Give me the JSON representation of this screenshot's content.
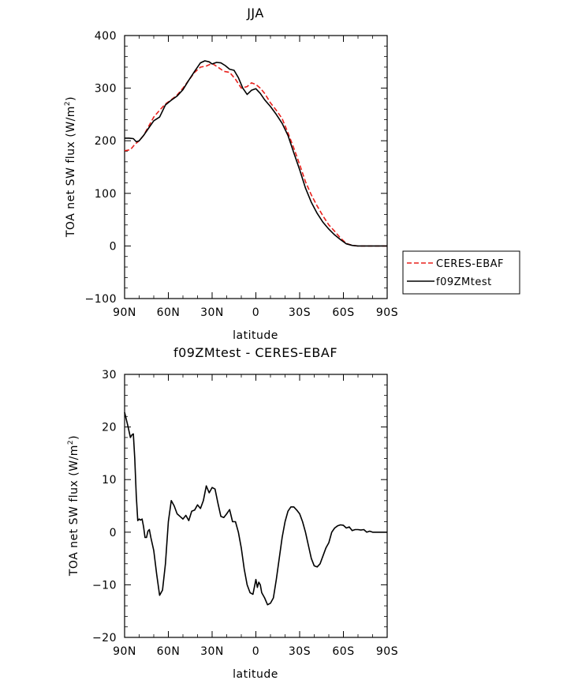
{
  "chart_data": [
    {
      "type": "line",
      "title": "JJA",
      "xlabel": "latitude",
      "ylabel": "TOA net SW flux (W/m",
      "ylabel_sup": "2",
      "ylabel_end": ")",
      "xlim": [
        90,
        -90
      ],
      "ylim": [
        -100,
        400
      ],
      "xticks": [
        90,
        60,
        30,
        0,
        -30,
        -60,
        -90
      ],
      "xtick_labels": [
        "90N",
        "60N",
        "30N",
        "0",
        "30S",
        "60S",
        "90S"
      ],
      "yticks": [
        -100,
        0,
        100,
        200,
        300,
        400
      ],
      "ytick_labels": [
        "−100",
        "0",
        "100",
        "200",
        "300",
        "400"
      ],
      "legend_position": "right",
      "series": [
        {
          "name": "CERES-EBAF",
          "color": "#e8201c",
          "dash": "dashed",
          "x": [
            90,
            86,
            83,
            80,
            77,
            74,
            70,
            66,
            62,
            58,
            54,
            50,
            46,
            42,
            38,
            34,
            30,
            26,
            22,
            18,
            14,
            10,
            6,
            3,
            0,
            -3,
            -6,
            -10,
            -14,
            -18,
            -22,
            -26,
            -30,
            -34,
            -38,
            -42,
            -46,
            -50,
            -54,
            -58,
            -62,
            -66,
            -70,
            -75,
            -80,
            -85,
            -90
          ],
          "y": [
            181,
            183,
            193,
            200,
            210,
            225,
            245,
            258,
            270,
            278,
            287,
            300,
            315,
            330,
            340,
            342,
            347,
            340,
            332,
            330,
            317,
            300,
            303,
            310,
            307,
            300,
            290,
            272,
            258,
            242,
            215,
            186,
            155,
            122,
            97,
            76,
            57,
            40,
            28,
            15,
            5,
            1,
            0,
            0,
            0,
            0,
            0
          ]
        },
        {
          "name": "f09ZMtest",
          "color": "#000000",
          "dash": "solid",
          "x": [
            90,
            87,
            84,
            82,
            80,
            77,
            74,
            70,
            66,
            62,
            58,
            54,
            50,
            46,
            42,
            38,
            35,
            32,
            30,
            27,
            24,
            21,
            18,
            15,
            12,
            9,
            6,
            3,
            0,
            -3,
            -6,
            -10,
            -14,
            -18,
            -22,
            -26,
            -30,
            -34,
            -38,
            -42,
            -46,
            -50,
            -54,
            -58,
            -62,
            -66,
            -70,
            -75,
            -80,
            -85,
            -90
          ],
          "y": [
            205,
            205,
            204,
            198,
            200,
            210,
            222,
            238,
            245,
            268,
            277,
            285,
            297,
            315,
            332,
            348,
            352,
            350,
            346,
            349,
            348,
            343,
            336,
            334,
            320,
            300,
            288,
            296,
            299,
            290,
            278,
            265,
            250,
            233,
            210,
            177,
            145,
            110,
            83,
            62,
            45,
            32,
            21,
            12,
            4,
            1,
            0,
            0,
            0,
            0,
            0
          ]
        }
      ]
    },
    {
      "type": "line",
      "title": "f09ZMtest - CERES-EBAF",
      "xlabel": "latitude",
      "ylabel": "TOA net SW flux (W/m",
      "ylabel_sup": "2",
      "ylabel_end": ")",
      "xlim": [
        90,
        -90
      ],
      "ylim": [
        -20,
        30
      ],
      "xticks": [
        90,
        60,
        30,
        0,
        -30,
        -60,
        -90
      ],
      "xtick_labels": [
        "90N",
        "60N",
        "30N",
        "0",
        "30S",
        "60S",
        "90S"
      ],
      "yticks": [
        -20,
        -10,
        0,
        10,
        20,
        30
      ],
      "ytick_labels": [
        "−20",
        "−10",
        "0",
        "10",
        "20",
        "30"
      ],
      "series": [
        {
          "name": "f09ZMtest",
          "color": "#000000",
          "dash": "solid",
          "x": [
            90,
            88,
            86,
            85,
            84,
            83,
            82,
            81,
            80,
            79,
            78,
            77,
            76,
            75,
            74,
            73,
            72,
            70,
            68,
            66,
            64,
            62,
            60,
            58,
            56,
            54,
            52,
            50,
            48,
            46,
            44,
            42,
            40,
            38,
            36,
            34,
            32,
            30,
            28,
            26,
            24,
            22,
            20,
            18,
            16,
            14,
            12,
            10,
            8,
            6,
            4,
            2,
            0,
            -1,
            -2,
            -3,
            -4,
            -6,
            -8,
            -10,
            -12,
            -14,
            -16,
            -18,
            -20,
            -22,
            -24,
            -26,
            -28,
            -30,
            -32,
            -34,
            -36,
            -38,
            -40,
            -42,
            -44,
            -46,
            -48,
            -50,
            -52,
            -54,
            -56,
            -58,
            -60,
            -62,
            -64,
            -66,
            -68,
            -70,
            -72,
            -74,
            -76,
            -78,
            -80,
            -85,
            -90
          ],
          "y": [
            22.8,
            20.5,
            18,
            18.5,
            18.7,
            14,
            7,
            2.2,
            2.5,
            2.3,
            2.5,
            1,
            -1,
            -1,
            0.2,
            0.5,
            -1,
            -3.5,
            -8,
            -12,
            -11,
            -6,
            2,
            6,
            5,
            3.5,
            3,
            2.5,
            3.2,
            2.2,
            4,
            4.2,
            5.2,
            4.5,
            6,
            8.8,
            7.5,
            8.5,
            8.2,
            5.5,
            3,
            2.8,
            3.5,
            4.3,
            2,
            2,
            0,
            -3,
            -7,
            -10,
            -11.5,
            -11.8,
            -9,
            -10.5,
            -9.5,
            -10,
            -11.5,
            -12.5,
            -13.8,
            -13.5,
            -12.5,
            -9,
            -5,
            -1,
            2,
            4,
            4.8,
            4.8,
            4.2,
            3.5,
            2,
            0,
            -2.5,
            -5,
            -6.4,
            -6.6,
            -6,
            -4.5,
            -3,
            -2,
            0,
            0.8,
            1.2,
            1.4,
            1.3,
            0.8,
            1,
            0.3,
            0.5,
            0.5,
            0.4,
            0.5,
            0,
            0.2,
            0,
            0,
            0
          ]
        }
      ]
    }
  ]
}
